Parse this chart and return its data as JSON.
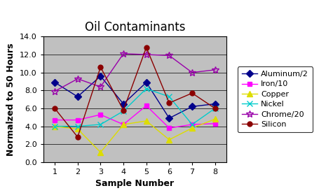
{
  "title": "Oil Contaminants",
  "xlabel": "Sample Number",
  "ylabel": "Normalzed to 50 Hours",
  "x": [
    1,
    2,
    3,
    4,
    5,
    6,
    7,
    8
  ],
  "series": {
    "Aluminum/2": {
      "values": [
        8.9,
        7.3,
        9.6,
        6.5,
        8.9,
        4.9,
        6.2,
        6.5
      ],
      "color": "#00008B",
      "marker": "D",
      "markersize": 5
    },
    "Iron/10": {
      "values": [
        4.7,
        4.7,
        5.3,
        4.2,
        6.3,
        3.8,
        4.2,
        4.3
      ],
      "color": "#FF00FF",
      "marker": "s",
      "markersize": 5
    },
    "Copper": {
      "values": [
        4.0,
        3.7,
        1.1,
        4.2,
        4.6,
        2.5,
        3.8,
        4.8
      ],
      "color": "#DDDD00",
      "marker": "^",
      "markersize": 6
    },
    "Nickel": {
      "values": [
        4.0,
        4.0,
        4.2,
        5.7,
        8.2,
        7.3,
        4.2,
        6.0
      ],
      "color": "#00CCCC",
      "marker": "x",
      "markersize": 6
    },
    "Chrome/20": {
      "values": [
        7.9,
        9.3,
        8.4,
        12.1,
        12.0,
        11.9,
        10.0,
        10.3
      ],
      "color": "#9900AA",
      "marker": "*",
      "markersize": 7
    },
    "Silicon": {
      "values": [
        6.0,
        2.8,
        10.6,
        5.8,
        12.8,
        6.6,
        7.7,
        6.0
      ],
      "color": "#8B0000",
      "marker": "o",
      "markersize": 5
    }
  },
  "ylim": [
    0.0,
    14.0
  ],
  "yticks": [
    0.0,
    2.0,
    4.0,
    6.0,
    8.0,
    10.0,
    12.0,
    14.0
  ],
  "xlim": [
    0.5,
    8.5
  ],
  "xticks": [
    1,
    2,
    3,
    4,
    5,
    6,
    7,
    8
  ],
  "bg_color": "#C0C0C0",
  "fig_width": 4.75,
  "fig_height": 2.76,
  "dpi": 100,
  "title_fontsize": 12,
  "axis_label_fontsize": 9,
  "tick_fontsize": 8,
  "legend_fontsize": 8
}
